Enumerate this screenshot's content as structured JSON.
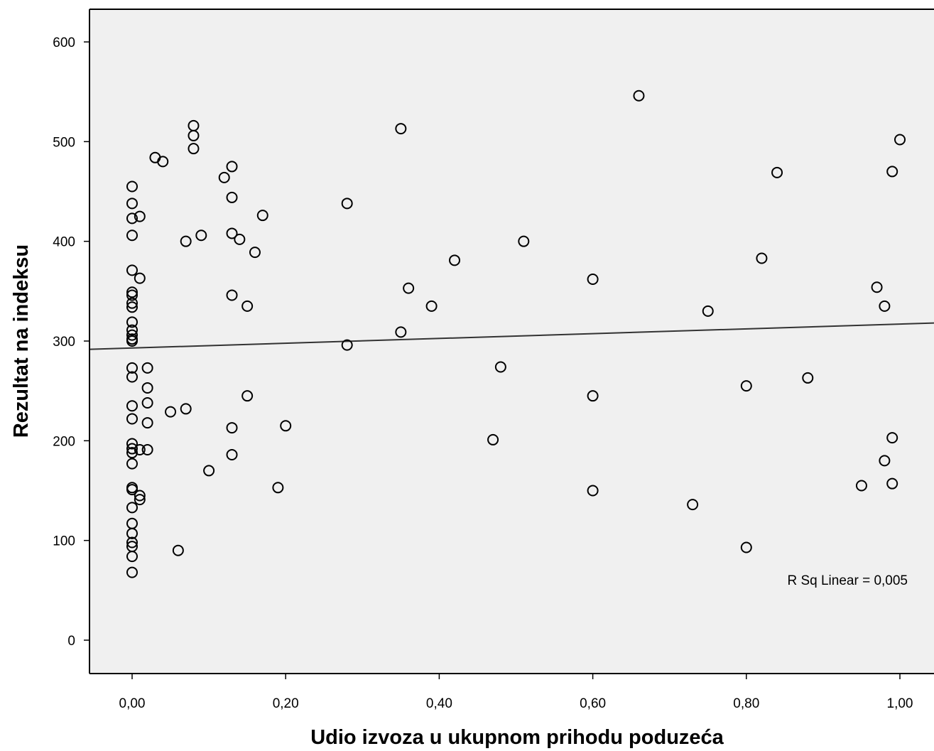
{
  "chart_data": {
    "type": "scatter",
    "xlabel": "Udio izvoza u ukupnom prihodu poduzeća",
    "ylabel": "Rezultat na indeksu",
    "xlim": [
      -0.055,
      1.06
    ],
    "ylim": [
      -33,
      633
    ],
    "xticks": [
      0.0,
      0.2,
      0.4,
      0.6,
      0.8,
      1.0
    ],
    "xtick_labels": [
      "0,00",
      "0,20",
      "0,40",
      "0,60",
      "0,80",
      "1,00"
    ],
    "yticks": [
      0,
      100,
      200,
      300,
      400,
      500,
      600
    ],
    "ytick_labels": [
      "0",
      "100",
      "200",
      "300",
      "400",
      "500",
      "600"
    ],
    "grid": false,
    "marker": "hollow-circle",
    "plot_background": "#f0f0f0",
    "fit_line": {
      "type": "linear",
      "intercept": 293,
      "slope": 24
    },
    "annotation": "R Sq Linear = 0,005",
    "points": [
      [
        0.0,
        455
      ],
      [
        0.0,
        438
      ],
      [
        0.0,
        423
      ],
      [
        0.01,
        425
      ],
      [
        0.0,
        406
      ],
      [
        0.0,
        371
      ],
      [
        0.01,
        363
      ],
      [
        0.0,
        349
      ],
      [
        0.0,
        346
      ],
      [
        0.0,
        338
      ],
      [
        0.0,
        334
      ],
      [
        0.0,
        319
      ],
      [
        0.0,
        311
      ],
      [
        0.0,
        306
      ],
      [
        0.0,
        302
      ],
      [
        0.0,
        300
      ],
      [
        0.0,
        273
      ],
      [
        0.02,
        273
      ],
      [
        0.0,
        264
      ],
      [
        0.02,
        253
      ],
      [
        0.02,
        238
      ],
      [
        0.0,
        235
      ],
      [
        0.0,
        222
      ],
      [
        0.02,
        218
      ],
      [
        0.0,
        197
      ],
      [
        0.0,
        192
      ],
      [
        0.01,
        191
      ],
      [
        0.02,
        191
      ],
      [
        0.0,
        188
      ],
      [
        0.0,
        177
      ],
      [
        0.0,
        153
      ],
      [
        0.0,
        151
      ],
      [
        0.01,
        145
      ],
      [
        0.01,
        141
      ],
      [
        0.0,
        133
      ],
      [
        0.0,
        117
      ],
      [
        0.0,
        107
      ],
      [
        0.0,
        98
      ],
      [
        0.0,
        94
      ],
      [
        0.0,
        84
      ],
      [
        0.0,
        68
      ],
      [
        0.03,
        484
      ],
      [
        0.04,
        480
      ],
      [
        0.05,
        229
      ],
      [
        0.06,
        90
      ],
      [
        0.07,
        400
      ],
      [
        0.07,
        232
      ],
      [
        0.08,
        516
      ],
      [
        0.08,
        506
      ],
      [
        0.08,
        493
      ],
      [
        0.09,
        406
      ],
      [
        0.1,
        170
      ],
      [
        0.12,
        464
      ],
      [
        0.13,
        475
      ],
      [
        0.13,
        444
      ],
      [
        0.13,
        408
      ],
      [
        0.13,
        346
      ],
      [
        0.13,
        213
      ],
      [
        0.13,
        186
      ],
      [
        0.14,
        402
      ],
      [
        0.15,
        335
      ],
      [
        0.15,
        245
      ],
      [
        0.16,
        389
      ],
      [
        0.17,
        426
      ],
      [
        0.19,
        153
      ],
      [
        0.2,
        215
      ],
      [
        0.28,
        438
      ],
      [
        0.28,
        296
      ],
      [
        0.35,
        513
      ],
      [
        0.35,
        309
      ],
      [
        0.36,
        353
      ],
      [
        0.39,
        335
      ],
      [
        0.42,
        381
      ],
      [
        0.47,
        201
      ],
      [
        0.48,
        274
      ],
      [
        0.51,
        400
      ],
      [
        0.6,
        362
      ],
      [
        0.6,
        245
      ],
      [
        0.6,
        150
      ],
      [
        0.66,
        546
      ],
      [
        0.73,
        136
      ],
      [
        0.75,
        330
      ],
      [
        0.8,
        255
      ],
      [
        0.8,
        93
      ],
      [
        0.82,
        383
      ],
      [
        0.84,
        469
      ],
      [
        0.88,
        263
      ],
      [
        0.95,
        155
      ],
      [
        0.97,
        354
      ],
      [
        0.98,
        335
      ],
      [
        0.98,
        180
      ],
      [
        0.99,
        470
      ],
      [
        0.99,
        203
      ],
      [
        0.99,
        157
      ],
      [
        1.0,
        502
      ]
    ]
  }
}
